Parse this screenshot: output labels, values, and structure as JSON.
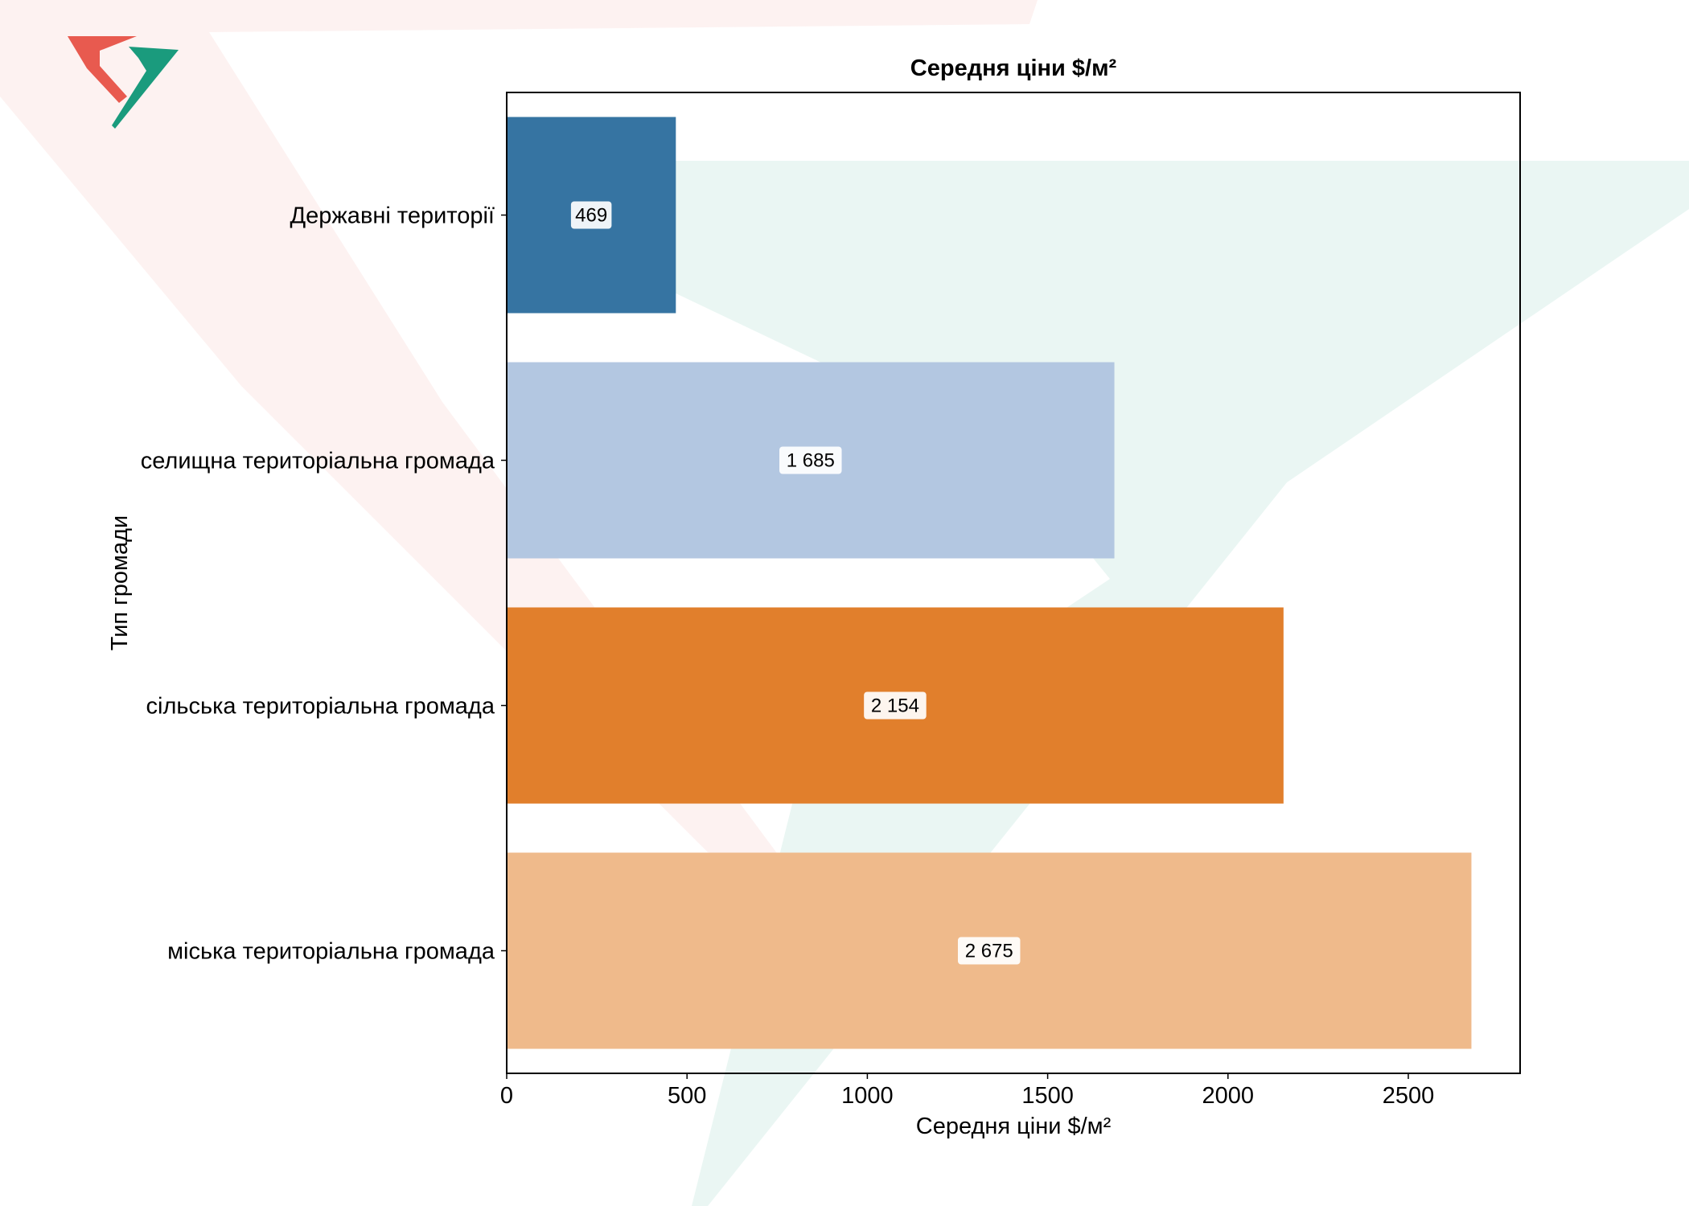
{
  "chart_data": {
    "type": "bar",
    "orientation": "horizontal",
    "title": "Середня ціни $/м²",
    "xlabel": "Середня ціни $/м²",
    "ylabel": "Тип громади",
    "categories": [
      "Державні території",
      "селищна територіальна громада",
      "сільська територіальна громада",
      "міська територіальна громада"
    ],
    "values": [
      469,
      1685,
      2154,
      2675
    ],
    "data_labels": [
      "469",
      "1 685",
      "2 154",
      "2 675"
    ],
    "colors": [
      "#2f6f9f",
      "#b1c5e0",
      "#e07b25",
      "#eeb887"
    ],
    "xlim": [
      0,
      2810
    ],
    "xticks": [
      0,
      500,
      1000,
      1500,
      2000,
      2500
    ],
    "xtick_labels": [
      "0",
      "500",
      "1000",
      "1500",
      "2000",
      "2500"
    ],
    "grid": false,
    "legend": "none",
    "watermark": {
      "type": "logo",
      "colors": [
        "#e85a4f",
        "#1a9b7d"
      ]
    }
  }
}
